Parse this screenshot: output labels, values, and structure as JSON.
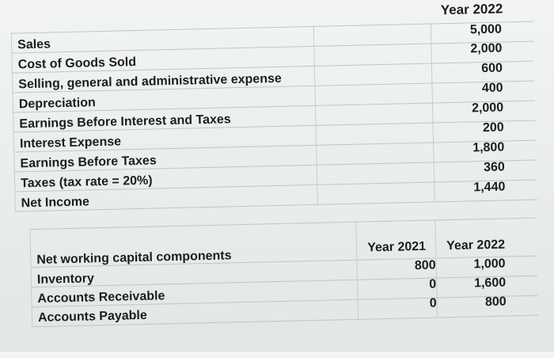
{
  "income_statement": {
    "header": "Year 2022",
    "rows": [
      {
        "label": "Sales",
        "value": "5,000"
      },
      {
        "label": "Cost of Goods Sold",
        "value": "2,000"
      },
      {
        "label": "Selling, general and administrative expense",
        "value": "600"
      },
      {
        "label": "Depreciation",
        "value": "400"
      },
      {
        "label": "Earnings Before Interest and Taxes",
        "value": "2,000"
      },
      {
        "label": "Interest Expense",
        "value": "200"
      },
      {
        "label": "Earnings Before Taxes",
        "value": "1,800"
      },
      {
        "label": "Taxes (tax rate = 20%)",
        "value": "360"
      },
      {
        "label": "Net Income",
        "value": "1,440"
      }
    ]
  },
  "working_capital": {
    "header_2021": "Year 2021",
    "header_2022": "Year 2022",
    "title": "Net working capital components",
    "rows": [
      {
        "label": "Inventory",
        "v2021": "800",
        "v2022": "1,000"
      },
      {
        "label": "Accounts Receivable",
        "v2021": "0",
        "v2022": "1,600"
      },
      {
        "label": "Accounts Payable",
        "v2021": "0",
        "v2022": "800"
      }
    ]
  }
}
